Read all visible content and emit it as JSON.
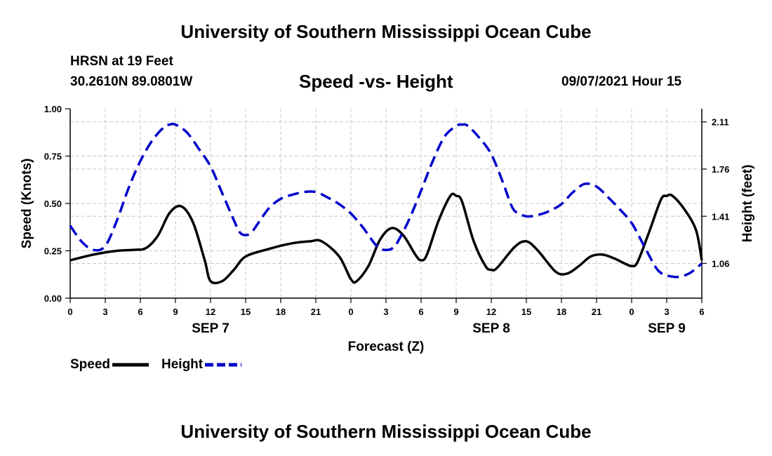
{
  "header": {
    "top_title": "University of Southern Mississippi Ocean Cube",
    "bottom_title": "University of Southern Mississippi Ocean Cube",
    "station": "HRSN at 19 Feet",
    "coords": "30.2610N  89.0801W",
    "datetime": "09/07/2021 Hour 15"
  },
  "chart_data": {
    "type": "line",
    "title": "Speed -vs- Height",
    "xlabel": "Forecast (Z)",
    "ylabel_left": "Speed (Knots)",
    "ylabel_right": "Height (feet)",
    "x_unit": "hours from SEP 7 00Z",
    "xlim": [
      0,
      54
    ],
    "ylim_left": [
      0,
      1.0
    ],
    "ylim_right": [
      0.8025,
      2.2075
    ],
    "x_ticks": [
      0,
      3,
      6,
      9,
      12,
      15,
      18,
      21,
      24,
      27,
      30,
      33,
      36,
      39,
      42,
      45,
      48,
      51,
      54
    ],
    "x_tick_labels": [
      "0",
      "3",
      "6",
      "9",
      "12",
      "15",
      "18",
      "21",
      "0",
      "3",
      "6",
      "9",
      "12",
      "15",
      "18",
      "21",
      "0",
      "3",
      "6"
    ],
    "date_labels": [
      {
        "x": 12,
        "label": "SEP 7"
      },
      {
        "x": 36,
        "label": "SEP 8"
      },
      {
        "x": 51,
        "label": "SEP 9"
      }
    ],
    "y_ticks_left": [
      0.0,
      0.25,
      0.5,
      0.75,
      1.0
    ],
    "y_tick_labels_left": [
      "0.00",
      "0.25",
      "0.50",
      "0.75",
      "1.00"
    ],
    "y_ticks_right": [
      1.06,
      1.41,
      1.76,
      2.11
    ],
    "y_tick_labels_right": [
      "1.06",
      "1.41",
      "1.76",
      "2.11"
    ],
    "grid": true,
    "legend": [
      {
        "label": "Speed",
        "color": "#000000",
        "style": "solid"
      },
      {
        "label": "Height",
        "color": "#0000cc",
        "style": "dashed"
      }
    ],
    "series": [
      {
        "name": "Speed",
        "axis": "left",
        "color": "#000000",
        "style": "solid",
        "x": [
          0,
          2,
          4,
          5.5,
          6.5,
          7.5,
          8.5,
          9.5,
          10.5,
          11.5,
          12,
          13,
          14,
          15,
          17,
          19,
          20.5,
          21.5,
          23,
          24,
          24.5,
          25.5,
          26.5,
          27.5,
          28.5,
          29.5,
          30,
          30.5,
          31.5,
          32.5,
          33,
          33.5,
          34.5,
          35.5,
          36,
          36.5,
          38,
          39,
          40,
          41.5,
          42.5,
          43.5,
          44.5,
          45.5,
          46.5,
          47.5,
          48,
          48.5,
          49.5,
          50.5,
          51,
          51.5,
          52.5,
          53.5,
          54
        ],
        "values": [
          0.2,
          0.23,
          0.25,
          0.255,
          0.265,
          0.33,
          0.45,
          0.485,
          0.4,
          0.2,
          0.09,
          0.09,
          0.15,
          0.22,
          0.26,
          0.29,
          0.3,
          0.3,
          0.22,
          0.1,
          0.09,
          0.17,
          0.31,
          0.37,
          0.33,
          0.23,
          0.2,
          0.23,
          0.41,
          0.54,
          0.54,
          0.51,
          0.3,
          0.17,
          0.15,
          0.16,
          0.27,
          0.3,
          0.25,
          0.14,
          0.13,
          0.17,
          0.22,
          0.23,
          0.21,
          0.18,
          0.17,
          0.19,
          0.35,
          0.52,
          0.54,
          0.54,
          0.47,
          0.36,
          0.2
        ]
      },
      {
        "name": "Height",
        "axis": "right",
        "color": "#0000cc",
        "style": "dashed",
        "x": [
          0,
          1,
          2,
          3,
          4,
          5,
          6,
          7,
          8,
          8.5,
          9,
          10,
          11,
          12,
          13,
          14,
          14.5,
          15,
          15.5,
          16,
          17,
          18,
          19,
          20,
          21,
          22,
          23,
          24,
          25,
          26,
          26.5,
          27,
          27.5,
          28,
          29,
          30,
          31,
          32,
          33,
          33.5,
          34,
          35,
          36,
          37,
          37.5,
          38,
          39,
          40,
          41,
          42,
          43,
          44,
          45,
          46,
          47,
          48,
          49,
          50,
          50.5,
          51,
          52,
          53,
          54
        ],
        "values": [
          1.34,
          1.22,
          1.16,
          1.19,
          1.38,
          1.62,
          1.82,
          1.97,
          2.07,
          2.09,
          2.09,
          2.03,
          1.91,
          1.78,
          1.58,
          1.38,
          1.29,
          1.27,
          1.29,
          1.35,
          1.47,
          1.54,
          1.57,
          1.59,
          1.59,
          1.55,
          1.5,
          1.43,
          1.33,
          1.21,
          1.17,
          1.16,
          1.17,
          1.22,
          1.39,
          1.6,
          1.82,
          2.0,
          2.08,
          2.09,
          2.08,
          1.99,
          1.87,
          1.66,
          1.54,
          1.45,
          1.41,
          1.42,
          1.45,
          1.5,
          1.59,
          1.65,
          1.63,
          1.55,
          1.46,
          1.36,
          1.2,
          1.04,
          0.99,
          0.97,
          0.96,
          0.99,
          1.06
        ]
      }
    ]
  }
}
